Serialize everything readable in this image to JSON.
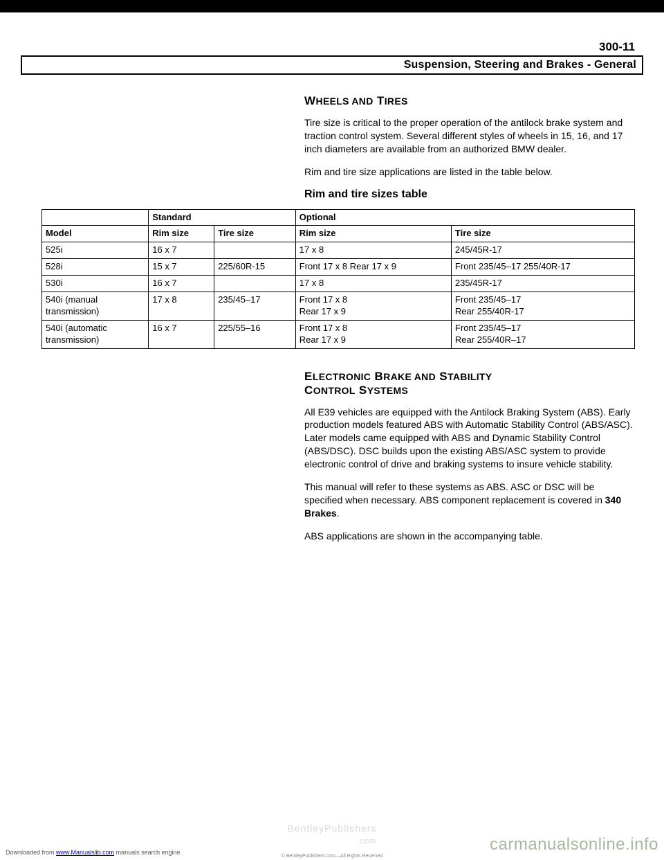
{
  "page_number": "300-11",
  "section_header": "Suspension, Steering and Brakes - General",
  "wheels": {
    "heading": "WHEELS AND TIRES",
    "para1": "Tire size is critical to the proper operation of the antilock brake system and traction control system. Several different styles of wheels in 15, 16, and 17 inch diameters are available from an authorized BMW dealer.",
    "para2": "Rim and tire size applications are listed in the table below.",
    "table_heading": "Rim and tire sizes table"
  },
  "table": {
    "header_groups": {
      "standard": "Standard",
      "optional": "Optional"
    },
    "columns": [
      "Model",
      "Rim size",
      "Tire size",
      "Rim size",
      "Tire size"
    ],
    "rows": [
      {
        "model": "525i",
        "std_rim": "16 x 7",
        "std_tire": "",
        "opt_rim": "17 x 8",
        "opt_tire": "245/45R-17"
      },
      {
        "model": "528i",
        "std_rim": "15 x 7",
        "std_tire": "225/60R-15",
        "opt_rim": "Front 17 x 8 Rear 17 x 9",
        "opt_tire": "Front 235/45–17 255/40R-17"
      },
      {
        "model": "530i",
        "std_rim": "16 x 7",
        "std_tire": "",
        "opt_rim": "17 x 8",
        "opt_tire": "235/45R-17"
      },
      {
        "model": "540i (manual transmission)",
        "std_rim": "17 x 8",
        "std_tire": "235/45–17",
        "opt_rim": "Front 17 x 8\nRear 17 x 9",
        "opt_tire": "Front 235/45–17\nRear 255/40R-17"
      },
      {
        "model": "540i (automatic transmission)",
        "std_rim": "16 x 7",
        "std_tire": "225/55–16",
        "opt_rim": "Front 17 x 8\nRear 17 x 9",
        "opt_tire": "Front 235/45–17\nRear 255/40R–17"
      }
    ]
  },
  "ebrake": {
    "heading_line1": "ELECTRONIC BRAKE AND STABILITY",
    "heading_line2": "CONTROL SYSTEMS",
    "para1": "All E39 vehicles are equipped with the Antilock Braking System (ABS). Early production models featured ABS with Automatic Stability Control (ABS/ASC). Later models came equipped with ABS and Dynamic Stability Control (ABS/DSC). DSC builds upon the existing ABS/ASC system to provide electronic control of drive and braking systems to insure vehicle stability.",
    "para2_pre": "This manual will refer to these systems as ABS. ASC or DSC will be specified when necessary. ABS component replacement is covered in ",
    "para2_bold": "340 Brakes",
    "para2_post": ".",
    "para3": "ABS applications are shown in the accompanying table."
  },
  "footer": {
    "downloaded_pre": "Downloaded from ",
    "downloaded_link": "www.Manualslib.com",
    "downloaded_post": " manuals search engine",
    "watermark_center": "BentleyPublishers",
    "watermark_center_sub": ".com",
    "copyright": "© BentleyPublishers.com—All Rights Reserved",
    "watermark_right": "carmanualsonline.info"
  }
}
